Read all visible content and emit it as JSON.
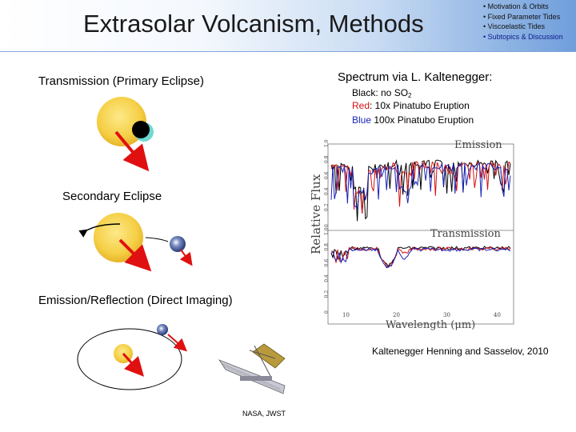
{
  "header": {
    "title": "Extrasolar Volcanism, Methods",
    "nav": [
      "• Motivation & Orbits",
      "• Fixed Parameter Tides",
      "• Viscoelastic Tides",
      "• Subtopics & Discussion"
    ],
    "active_nav": 3
  },
  "methods": {
    "transmission": "Transmission (Primary Eclipse)",
    "secondary": "Secondary Eclipse",
    "emission": "Emission/Reflection (Direct Imaging)"
  },
  "spectrum": {
    "heading": "Spectrum via L. Kaltenegger:",
    "legend_black_prefix": "Black: no SO",
    "legend_black_sub": "2",
    "legend_red_word": "Red",
    "legend_red_rest": ": 10x Pinatubo Eruption",
    "legend_blue_word": "Blue",
    "legend_blue_rest": " 100x Pinatubo Eruption",
    "panel_emission": "Emission",
    "panel_transmission": "Transmission",
    "y_label": "Relative Flux",
    "x_label": "Wavelength  (μm)",
    "x_ticks": [
      "10",
      "20",
      "30",
      "40"
    ],
    "y_ticks_top": [
      "0",
      "0.2",
      "0.4",
      "0.6",
      "0.8",
      "1.0"
    ],
    "y_ticks_bottom": [
      "0",
      "0.2",
      "0.4",
      "0.6",
      "0.8",
      "1.0"
    ]
  },
  "credits": {
    "paper": "Kaltenegger Henning and Sasselov, 2010",
    "jwst": "NASA, JWST"
  },
  "colors": {
    "star": "#f6d24a",
    "arrow": "#e01010",
    "red_series": "#d81010",
    "blue_series": "#1a24b8"
  }
}
